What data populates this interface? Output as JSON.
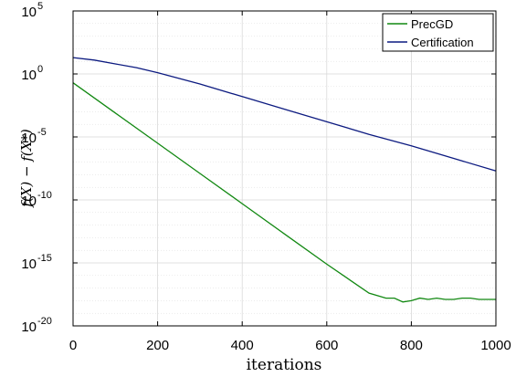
{
  "colors": {
    "precgd": "#118811",
    "certification": "#0c1a80",
    "grid": "#d9d9d9",
    "axis": "#000000"
  },
  "chart_data": {
    "type": "line",
    "xlabel": "iterations",
    "ylabel": "f(X) − f(X*)",
    "xlim": [
      0,
      1000
    ],
    "ylim_log10": [
      -20,
      5
    ],
    "yscale": "log",
    "grid": true,
    "legend_position": "top-right",
    "xticks": [
      "0",
      "200",
      "400",
      "600",
      "800",
      "1000"
    ],
    "yticks": [
      {
        "base": "10",
        "exp": "5"
      },
      {
        "base": "10",
        "exp": "0"
      },
      {
        "base": "10",
        "exp": "-5"
      },
      {
        "base": "10",
        "exp": "-10"
      },
      {
        "base": "10",
        "exp": "-15"
      },
      {
        "base": "10",
        "exp": "-20"
      }
    ],
    "series": [
      {
        "name": "PrecGD",
        "x": [
          0,
          100,
          200,
          300,
          400,
          500,
          600,
          700,
          720,
          740,
          760,
          780,
          800,
          820,
          840,
          860,
          880,
          900,
          920,
          940,
          960,
          980,
          1000
        ],
        "y_log10": [
          -0.7,
          -3.1,
          -5.5,
          -7.9,
          -10.3,
          -12.7,
          -15.1,
          -17.4,
          -17.6,
          -17.8,
          -17.8,
          -18.1,
          -18.0,
          -17.8,
          -17.9,
          -17.8,
          -17.9,
          -17.9,
          -17.8,
          -17.8,
          -17.9,
          -17.9,
          -17.9
        ]
      },
      {
        "name": "Certification",
        "x": [
          0,
          50,
          100,
          150,
          200,
          300,
          400,
          500,
          600,
          700,
          800,
          900,
          1000
        ],
        "y_log10": [
          1.3,
          1.1,
          0.8,
          0.5,
          0.1,
          -0.8,
          -1.8,
          -2.8,
          -3.8,
          -4.8,
          -5.7,
          -6.7,
          -7.7
        ]
      }
    ]
  }
}
